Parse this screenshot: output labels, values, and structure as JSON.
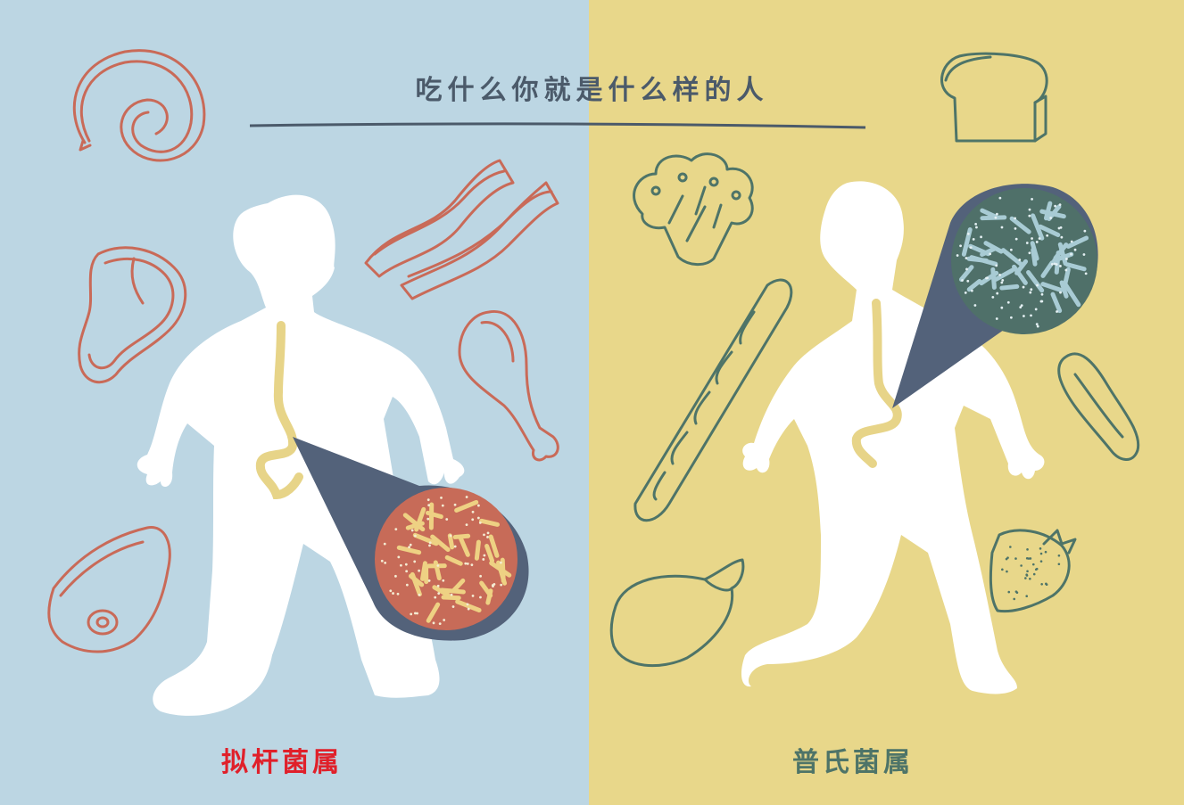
{
  "title": "吃什么你就是什么样的人",
  "left_panel": {
    "caption": "拟杆菌属",
    "background": "#bcd6e3",
    "stroke_color": "#c96a58",
    "caption_color": "#e0202a",
    "foods": [
      "sausage-spiral-icon",
      "bacon-icon",
      "steak-icon",
      "chicken-drumstick-icon",
      "ham-icon"
    ]
  },
  "right_panel": {
    "caption": "普氏菌属",
    "background": "#e8d78a",
    "stroke_color": "#4e7468",
    "caption_color": "#4e7468",
    "foods": [
      "bread-icon",
      "broccoli-icon",
      "baguette-icon",
      "cucumber-icon",
      "eggplant-icon",
      "strawberry-icon"
    ]
  },
  "colors": {
    "title": "#4b5a6a",
    "body": "#ffffff",
    "stomach": "#e7d488",
    "cone": "#53627a",
    "bacteroides_bg": "#c76b58",
    "bacteroides_rods": "#eed183",
    "prevotella_bg": "#4f7069",
    "prevotella_rods": "#a8cbd4"
  }
}
